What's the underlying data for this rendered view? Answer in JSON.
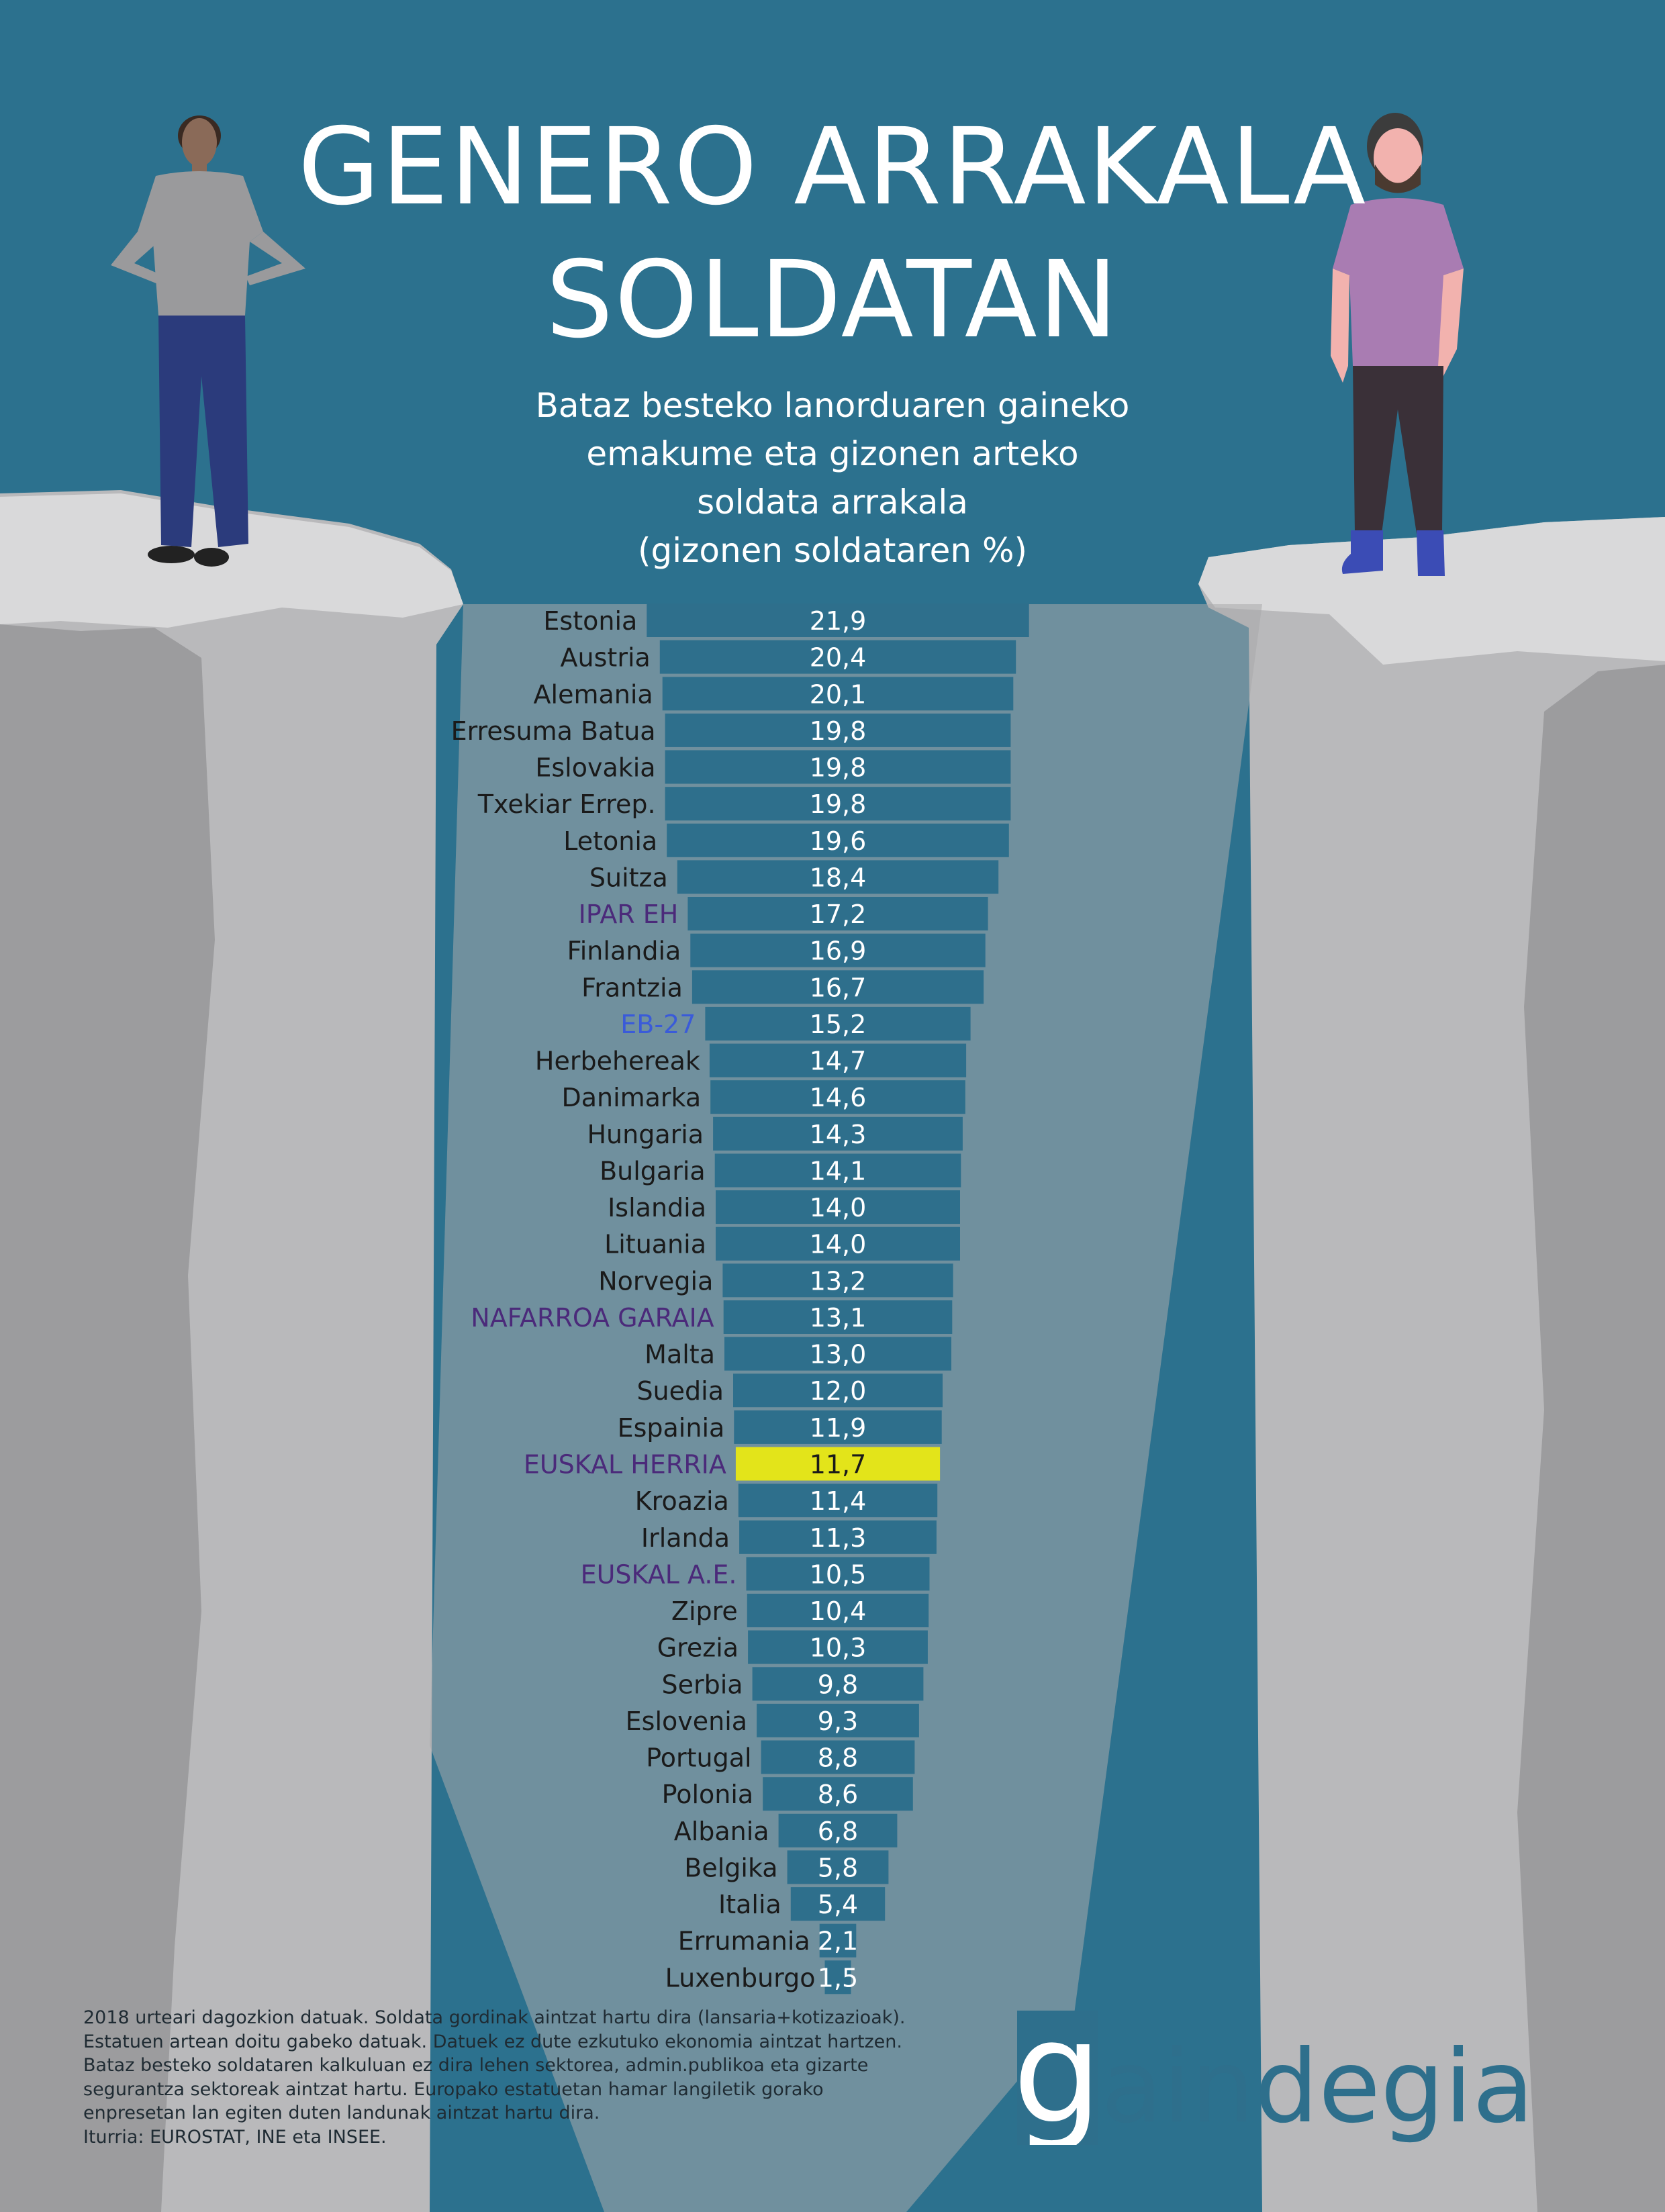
{
  "title": {
    "line1": "GENERO ARRAKALA",
    "line2": "SOLDATAN"
  },
  "subtitle": {
    "line1": "Bataz besteko lanorduaren gaineko",
    "line2": "emakume eta gizonen arteko",
    "line3": "soldata arrakala",
    "line4": "(gizonen soldataren %)"
  },
  "colors": {
    "background": "#2c718e",
    "bar": "#2e6f8c",
    "bar_highlight": "#e3e41a",
    "label_default": "#1a1a1a",
    "label_basque": "#4b2a7a",
    "label_eu": "#3a5bd9",
    "value_text": "#ffffff",
    "value_text_highlight": "#1a1a1a"
  },
  "chart_data": {
    "type": "bar",
    "orientation": "horizontal",
    "categories": [
      "Estonia",
      "Austria",
      "Alemania",
      "Erresuma Batua",
      "Eslovakia",
      "Txekiar Errep.",
      "Letonia",
      "Suitza",
      "IPAR EH",
      "Finlandia",
      "Frantzia",
      "EB-27",
      "Herbehereak",
      "Danimarka",
      "Hungaria",
      "Bulgaria",
      "Islandia",
      "Lituania",
      "Norvegia",
      "NAFARROA GARAIA",
      "Malta",
      "Suedia",
      "Espainia",
      "EUSKAL HERRIA",
      "Kroazia",
      "Irlanda",
      "EUSKAL A.E.",
      "Zipre",
      "Grezia",
      "Serbia",
      "Eslovenia",
      "Portugal",
      "Polonia",
      "Albania",
      "Belgika",
      "Italia",
      "Errumania",
      "Luxenburgo"
    ],
    "values": [
      21.9,
      20.4,
      20.1,
      19.8,
      19.8,
      19.8,
      19.6,
      18.4,
      17.2,
      16.9,
      16.7,
      15.2,
      14.7,
      14.6,
      14.3,
      14.1,
      14.0,
      14.0,
      13.2,
      13.1,
      13.0,
      12.0,
      11.9,
      11.7,
      11.4,
      11.3,
      10.5,
      10.4,
      10.3,
      9.8,
      9.3,
      8.8,
      8.6,
      6.8,
      5.8,
      5.4,
      2.1,
      1.5
    ],
    "value_labels": [
      "21,9",
      "20,4",
      "20,1",
      "19,8",
      "19,8",
      "19,8",
      "19,6",
      "18,4",
      "17,2",
      "16,9",
      "16,7",
      "15,2",
      "14,7",
      "14,6",
      "14,3",
      "14,1",
      "14,0",
      "14,0",
      "13,2",
      "13,1",
      "13,0",
      "12,0",
      "11,9",
      "11,7",
      "11,4",
      "11,3",
      "10,5",
      "10,4",
      "10,3",
      "9,8",
      "9,3",
      "8,8",
      "8,6",
      "6,8",
      "5,8",
      "5,4",
      "2,1",
      "1,5"
    ],
    "label_style": [
      "default",
      "default",
      "default",
      "default",
      "default",
      "default",
      "default",
      "default",
      "basque",
      "default",
      "default",
      "eu",
      "default",
      "default",
      "default",
      "default",
      "default",
      "default",
      "default",
      "basque",
      "default",
      "default",
      "default",
      "basque",
      "default",
      "default",
      "basque",
      "default",
      "default",
      "default",
      "default",
      "default",
      "default",
      "default",
      "default",
      "default",
      "default",
      "default"
    ],
    "highlight": "EUSKAL HERRIA",
    "title": "GENERO ARRAKALA SOLDATAN",
    "xlabel": "",
    "ylabel": ""
  },
  "notes": [
    "2018 urteari dagozkion datuak. Soldata gordinak aintzat hartu dira (lansaria+kotizazioak).",
    "Estatuen artean doitu gabeko datuak. Datuek ez dute ezkutuko ekonomia aintzat hartzen.",
    "Bataz besteko soldataren kalkuluan ez dira lehen sektorea, admin.publikoa eta gizarte",
    "segurantza sektoreak aintzat hartu. Europako estatuetan hamar langiletik gorako",
    "enpresetan lan egiten duten landunak aintzat hartu dira.",
    "Iturria: EUROSTAT, INE eta INSEE."
  ],
  "logo": {
    "text": "gaindegia"
  }
}
